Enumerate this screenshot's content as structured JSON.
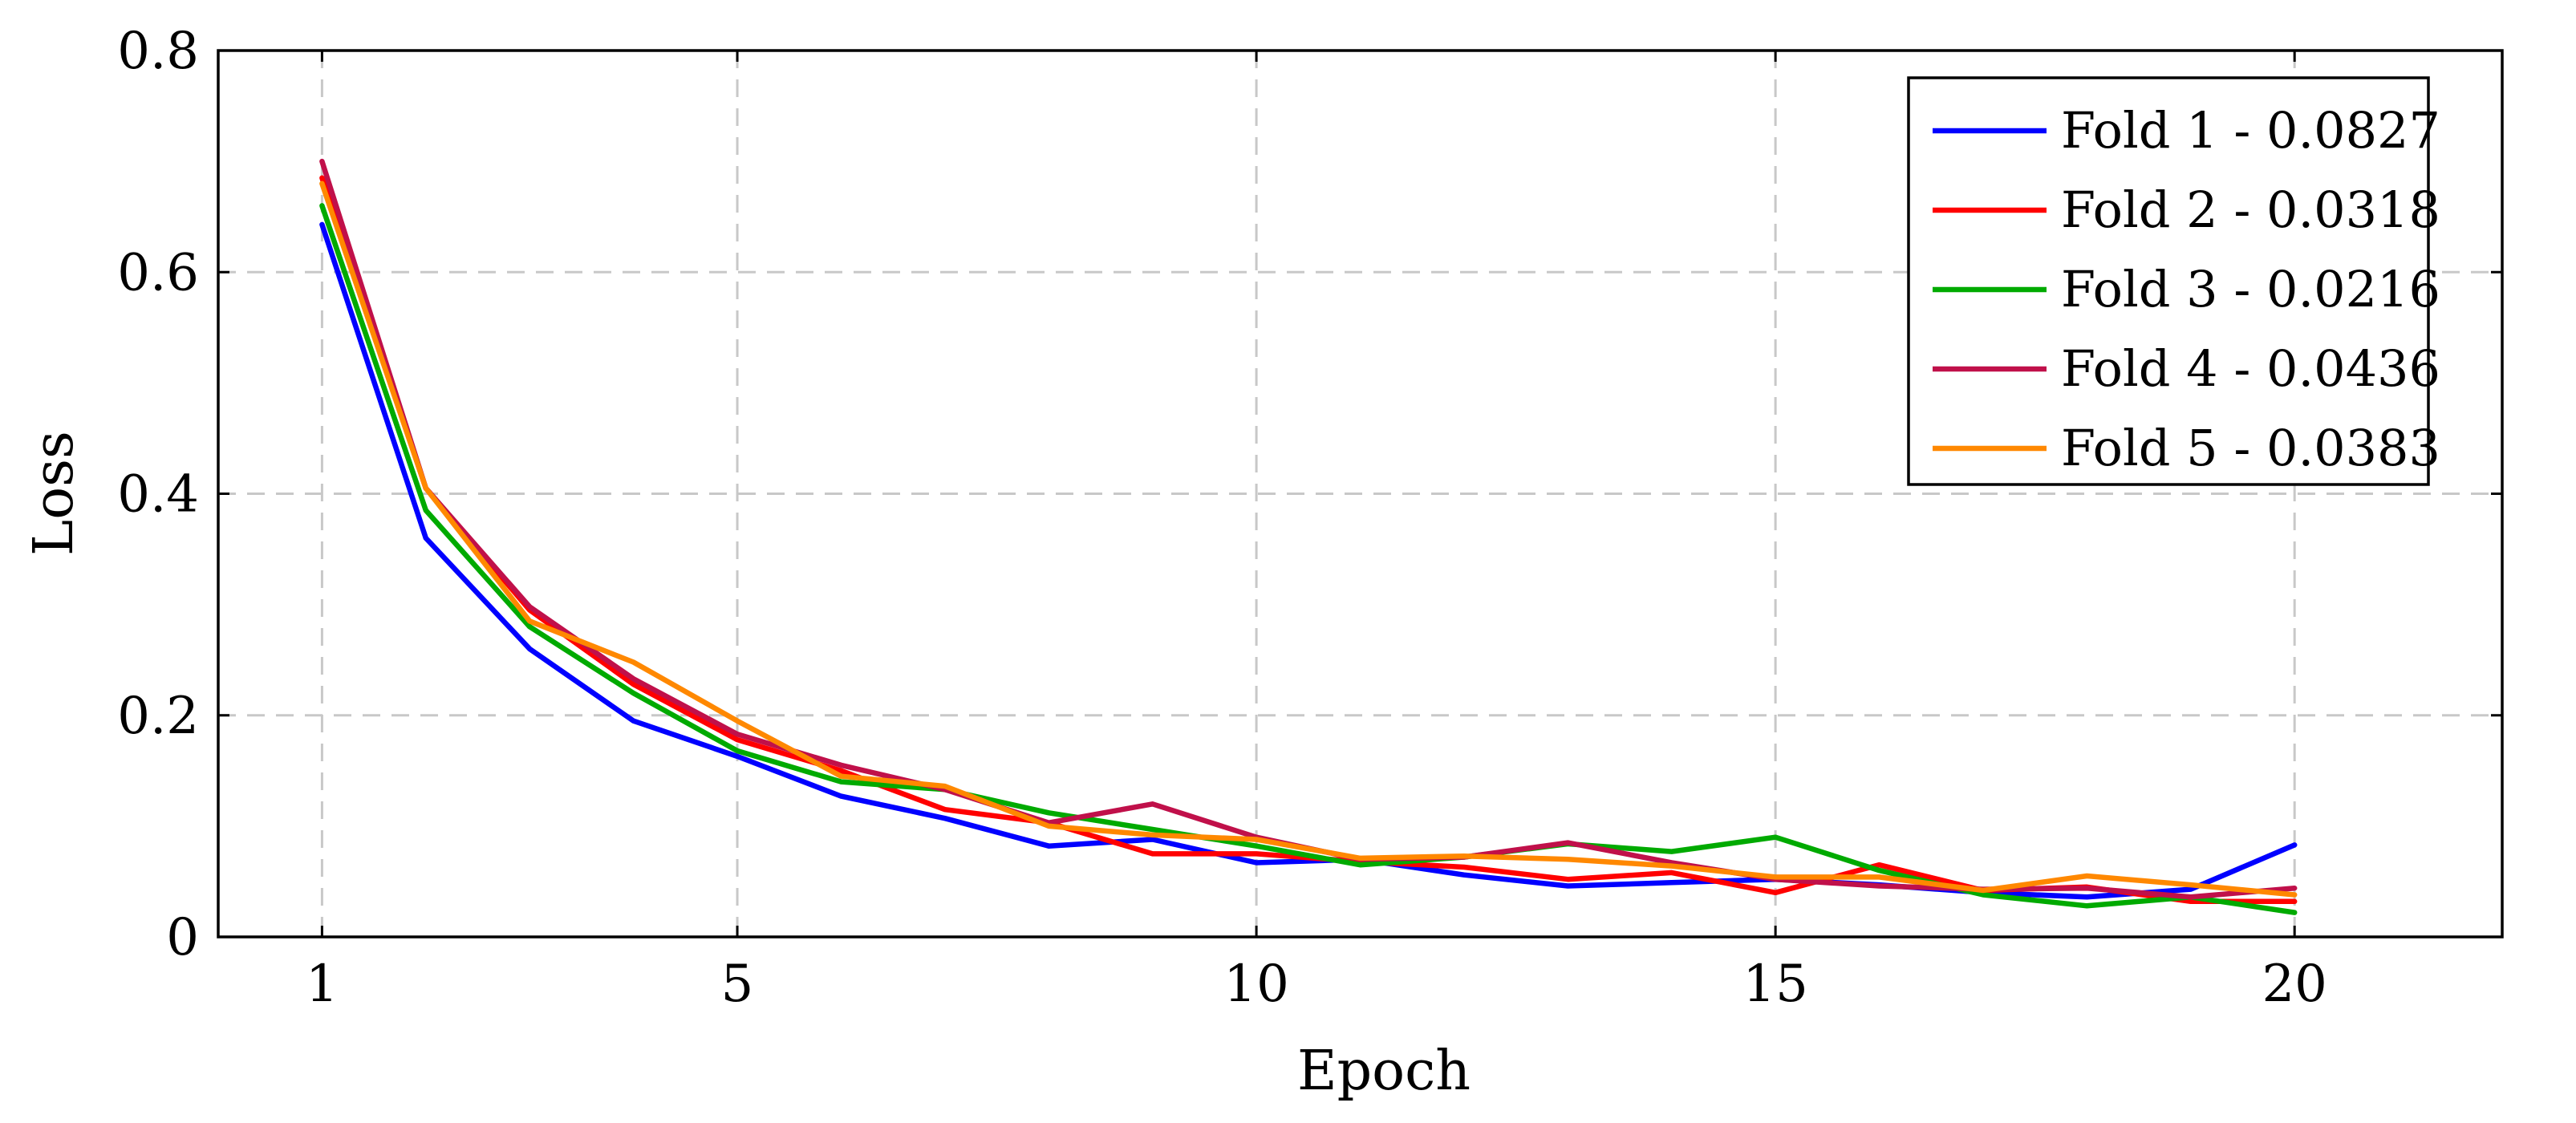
{
  "chart_data": {
    "type": "line",
    "xlabel": "Epoch",
    "ylabel": "Loss",
    "xlim": [
      0,
      22
    ],
    "ylim": [
      0,
      0.8
    ],
    "xticks": [
      1,
      5,
      10,
      15,
      20
    ],
    "yticks": [
      0,
      0.2,
      0.4,
      0.6,
      0.8
    ],
    "xtick_labels": [
      "1",
      "5",
      "10",
      "15",
      "20"
    ],
    "ytick_labels": [
      "0",
      "0.2",
      "0.4",
      "0.6",
      "0.8"
    ],
    "grid": true,
    "legend_position": "top-right",
    "x": [
      1,
      2,
      3,
      4,
      5,
      6,
      7,
      8,
      9,
      10,
      11,
      12,
      13,
      14,
      15,
      16,
      17,
      18,
      19,
      20
    ],
    "series": [
      {
        "name": "Fold 1 - 0.0827",
        "color": "#0000ff",
        "values": [
          0.643,
          0.36,
          0.26,
          0.195,
          0.163,
          0.127,
          0.107,
          0.082,
          0.088,
          0.067,
          0.07,
          0.056,
          0.046,
          0.049,
          0.052,
          0.047,
          0.04,
          0.036,
          0.043,
          0.083
        ]
      },
      {
        "name": "Fold 2 - 0.0318",
        "color": "#ff0000",
        "values": [
          0.685,
          0.405,
          0.295,
          0.228,
          0.178,
          0.15,
          0.115,
          0.103,
          0.075,
          0.075,
          0.068,
          0.063,
          0.052,
          0.058,
          0.04,
          0.065,
          0.042,
          0.045,
          0.032,
          0.032
        ]
      },
      {
        "name": "Fold 3 - 0.0216",
        "color": "#00aa00",
        "values": [
          0.66,
          0.385,
          0.28,
          0.22,
          0.168,
          0.14,
          0.133,
          0.112,
          0.097,
          0.082,
          0.065,
          0.072,
          0.084,
          0.077,
          0.09,
          0.06,
          0.038,
          0.028,
          0.036,
          0.022
        ]
      },
      {
        "name": "Fold 4 - 0.0436",
        "color": "#c0104a",
        "values": [
          0.7,
          0.405,
          0.298,
          0.233,
          0.183,
          0.155,
          0.133,
          0.103,
          0.12,
          0.09,
          0.07,
          0.072,
          0.085,
          0.067,
          0.052,
          0.046,
          0.043,
          0.044,
          0.036,
          0.044
        ]
      },
      {
        "name": "Fold 5 - 0.0383",
        "color": "#ff8800",
        "values": [
          0.68,
          0.405,
          0.285,
          0.248,
          0.195,
          0.145,
          0.136,
          0.1,
          0.092,
          0.088,
          0.071,
          0.073,
          0.07,
          0.064,
          0.054,
          0.054,
          0.042,
          0.055,
          0.047,
          0.038
        ]
      }
    ]
  }
}
